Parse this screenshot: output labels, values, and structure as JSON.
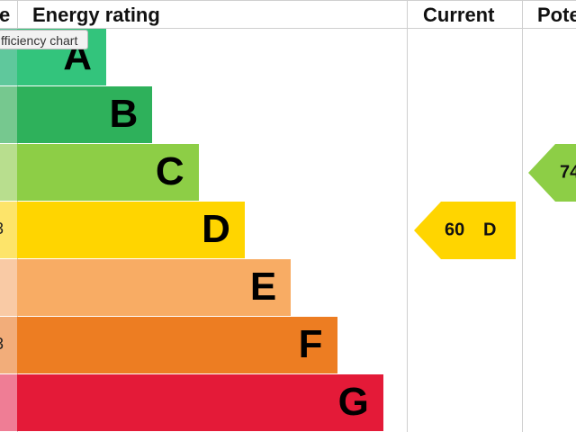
{
  "header": {
    "score": "e",
    "rating": "Energy rating",
    "current": "Current",
    "potential": "Pote"
  },
  "tooltip": "fficiency chart",
  "rows": [
    {
      "letter": "A",
      "color": "#33c47c",
      "light": "#5fc89c"
    },
    {
      "letter": "B",
      "color": "#2eb15b",
      "light": "#76c88f"
    },
    {
      "letter": "C",
      "color": "#8dce46",
      "light": "#b8de8e",
      "range": ")"
    },
    {
      "letter": "D",
      "color": "#ffd500",
      "light": "#fde46a",
      "range": "3"
    },
    {
      "letter": "E",
      "color": "#f8ac64",
      "light": "#f9caa5",
      "range": "-"
    },
    {
      "letter": "F",
      "color": "#ed7d22",
      "light": "#f2ad7a",
      "range": "3"
    },
    {
      "letter": "G",
      "color": "#e41a38",
      "light": "#ef7d95"
    }
  ],
  "current": {
    "score": "60",
    "band": "D",
    "color": "#ffd500"
  },
  "potential": {
    "score": "74",
    "color": "#8dce46"
  }
}
